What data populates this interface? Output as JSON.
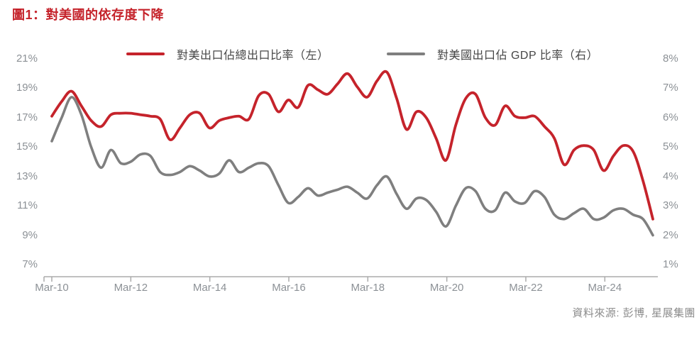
{
  "title": "圖1：對美國的依存度下降",
  "colors": {
    "title_red": "#C5232B",
    "red_line": "#C5232B",
    "gray_line": "#7F7F7F",
    "axis_text": "#8C9196",
    "axis_line": "#ABABAB",
    "legend_text": "#454545",
    "source_text": "#8C8C8C"
  },
  "legend": [
    {
      "label": "對美出口佔總出口比率（左）",
      "color": "#C5232B"
    },
    {
      "label": "對美國出口佔 GDP 比率（右）",
      "color": "#7F7F7F"
    }
  ],
  "source": "資料來源: 彭博, 星展集團",
  "chart_data": {
    "type": "line",
    "title": "圖1：對美國的依存度下降",
    "grid": false,
    "legend_position": "top",
    "x_axis_labels": [
      "Mar-10",
      "Mar-12",
      "Mar-14",
      "Mar-16",
      "Mar-18",
      "Mar-20",
      "Mar-22",
      "Mar-24"
    ],
    "left_axis": {
      "ticks": [
        "21%",
        "19%",
        "17%",
        "15%",
        "13%",
        "11%",
        "9%",
        "7%"
      ],
      "max": 21,
      "min": 7,
      "unit": "%"
    },
    "right_axis": {
      "ticks": [
        "8%",
        "7%",
        "6%",
        "5%",
        "4%",
        "3%",
        "2%",
        "1%"
      ],
      "max": 8,
      "min": 1,
      "unit": "%"
    },
    "x": [
      "Mar-10",
      "Jun-10",
      "Sep-10",
      "Dec-10",
      "Mar-11",
      "Jun-11",
      "Sep-11",
      "Dec-11",
      "Mar-12",
      "Jun-12",
      "Sep-12",
      "Dec-12",
      "Mar-13",
      "Jun-13",
      "Sep-13",
      "Dec-13",
      "Mar-14",
      "Jun-14",
      "Sep-14",
      "Dec-14",
      "Mar-15",
      "Jun-15",
      "Sep-15",
      "Dec-15",
      "Mar-16",
      "Jun-16",
      "Sep-16",
      "Dec-16",
      "Mar-17",
      "Jun-17",
      "Sep-17",
      "Dec-17",
      "Mar-18",
      "Jun-18",
      "Sep-18",
      "Dec-18",
      "Mar-19",
      "Jun-19",
      "Sep-19",
      "Dec-19",
      "Mar-20",
      "Jun-20",
      "Sep-20",
      "Dec-20",
      "Mar-21",
      "Jun-21",
      "Sep-21",
      "Dec-21",
      "Mar-22",
      "Jun-22",
      "Sep-22",
      "Dec-22",
      "Mar-23",
      "Jun-23",
      "Sep-23",
      "Dec-23",
      "Mar-24",
      "Jun-24",
      "Sep-24",
      "Dec-24",
      "Mar-25",
      "Jun-25"
    ],
    "series": [
      {
        "name": "對美出口佔總出口比率（左）",
        "axis": "left",
        "color": "#C5232B",
        "values": [
          17.1,
          18.1,
          18.8,
          17.8,
          16.8,
          16.4,
          17.2,
          17.3,
          17.3,
          17.2,
          17.1,
          16.9,
          15.5,
          16.3,
          17.2,
          17.3,
          16.3,
          16.8,
          17.0,
          17.1,
          16.9,
          18.5,
          18.6,
          17.4,
          18.2,
          17.7,
          19.2,
          18.9,
          18.6,
          19.3,
          20.0,
          19.1,
          18.4,
          19.5,
          20.1,
          18.3,
          16.2,
          17.4,
          17.0,
          15.6,
          14.1,
          16.5,
          18.3,
          18.6,
          17.0,
          16.5,
          17.8,
          17.1,
          17.0,
          17.1,
          16.4,
          15.6,
          13.8,
          14.8,
          15.1,
          14.8,
          13.4,
          14.4,
          15.1,
          14.7,
          12.7,
          10.1
        ]
      },
      {
        "name": "對美國出口佔 GDP 比率（右）",
        "axis": "right",
        "color": "#7F7F7F",
        "values": [
          5.2,
          6.0,
          6.7,
          6.1,
          5.0,
          4.3,
          4.9,
          4.45,
          4.5,
          4.75,
          4.7,
          4.15,
          4.05,
          4.15,
          4.35,
          4.2,
          4.0,
          4.1,
          4.55,
          4.15,
          4.3,
          4.45,
          4.35,
          3.7,
          3.1,
          3.3,
          3.6,
          3.35,
          3.45,
          3.55,
          3.65,
          3.45,
          3.25,
          3.7,
          4.0,
          3.4,
          2.9,
          3.25,
          3.2,
          2.8,
          2.3,
          3.0,
          3.6,
          3.5,
          2.9,
          2.85,
          3.45,
          3.15,
          3.1,
          3.5,
          3.3,
          2.7,
          2.55,
          2.75,
          2.9,
          2.55,
          2.6,
          2.85,
          2.9,
          2.7,
          2.55,
          2.0
        ]
      }
    ]
  }
}
